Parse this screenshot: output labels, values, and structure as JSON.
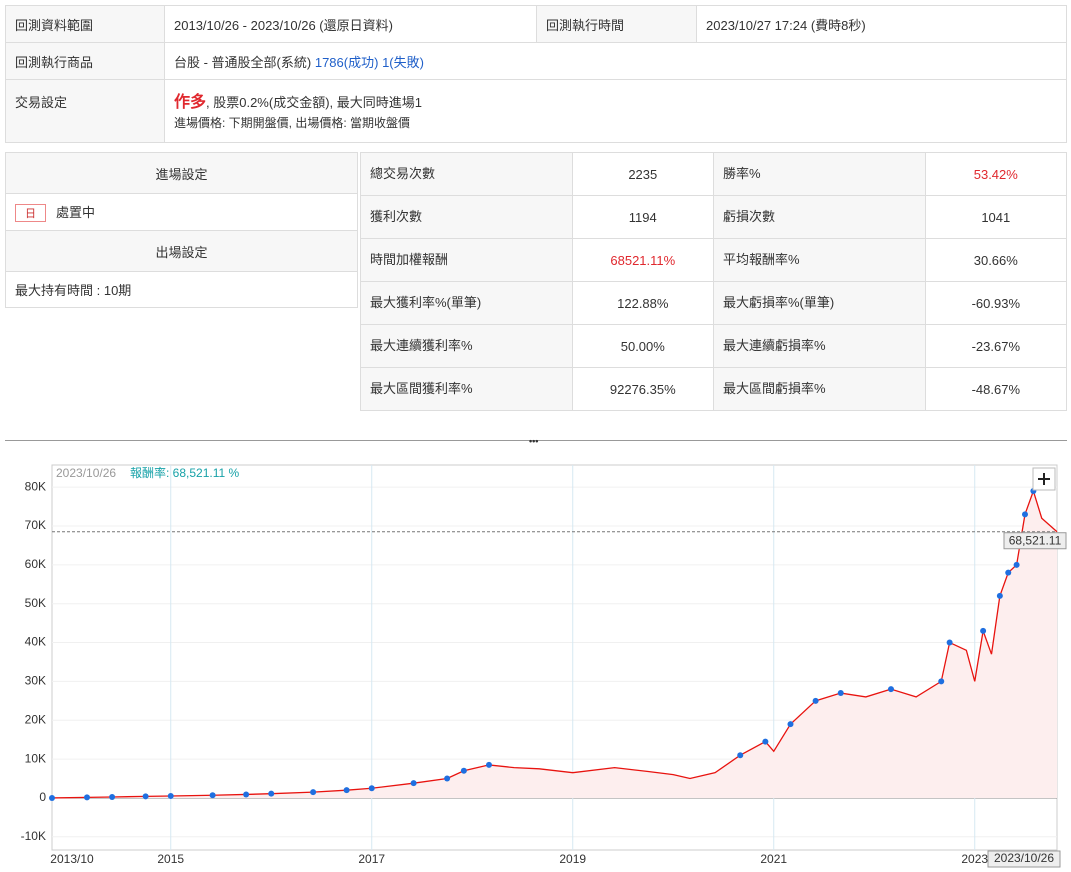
{
  "info": {
    "range_label": "回測資料範圍",
    "range_value": "2013/10/26 - 2023/10/26 (還原日資料)",
    "time_label": "回測執行時間",
    "time_value": "2023/10/27 17:24 (費時8秒)",
    "product_label": "回測執行商品",
    "product_value": "台股 - 普通股全部(系統)",
    "product_success": "1786(成功)",
    "product_fail": "1(失敗)",
    "trade_label": "交易設定",
    "trade_direction": "作多",
    "trade_detail": ", 股票0.2%(成交金額), 最大同時進場1",
    "trade_price": "進場價格: 下期開盤價, 出場價格: 當期收盤價"
  },
  "entry": {
    "title": "進場設定",
    "badge": "日",
    "condition": "處置中"
  },
  "exit": {
    "title": "出場設定",
    "condition": "最大持有時間 : 10期"
  },
  "stats": {
    "rows": [
      [
        "總交易次數",
        "2235",
        "勝率%",
        "53.42%"
      ],
      [
        "獲利次數",
        "1194",
        "虧損次數",
        "1041"
      ],
      [
        "時間加權報酬",
        "68521.11%",
        "平均報酬率%",
        "30.66%"
      ],
      [
        "最大獲利率%(單筆)",
        "122.88%",
        "最大虧損率%(單筆)",
        "-60.93%"
      ],
      [
        "最大連續獲利率%",
        "50.00%",
        "最大連續虧損率%",
        "-23.67%"
      ],
      [
        "最大區間獲利率%",
        "92276.35%",
        "最大區間虧損率%",
        "-48.67%"
      ]
    ]
  },
  "chart_data": {
    "type": "line",
    "header_date": "2023/10/26",
    "header_metric": "報酬率: 68,521.11 %",
    "date_label": "2023/10/26",
    "last_label": "68,521.11",
    "x": [
      "2013/10/26",
      "2014/03",
      "2014/06",
      "2014/10",
      "2015/01",
      "2015/06",
      "2015/10",
      "2016/01",
      "2016/06",
      "2016/10",
      "2017/01",
      "2017/06",
      "2017/10",
      "2017/12",
      "2018/03",
      "2018/06",
      "2018/09",
      "2019/01",
      "2019/06",
      "2019/10",
      "2020/01",
      "2020/03",
      "2020/06",
      "2020/09",
      "2020/12",
      "2021/01",
      "2021/03",
      "2021/06",
      "2021/09",
      "2021/12",
      "2022/03",
      "2022/06",
      "2022/09",
      "2022/10",
      "2022/12",
      "2023/01",
      "2023/02",
      "2023/03",
      "2023/04",
      "2023/05",
      "2023/06",
      "2023/07",
      "2023/08",
      "2023/09",
      "2023/10/26"
    ],
    "series": [
      {
        "color": "#e8130f",
        "high_color": "#1f6fe0",
        "fill": "#fdeeee",
        "values": [
          0,
          150,
          250,
          400,
          500,
          700,
          900,
          1100,
          1500,
          2000,
          2500,
          3800,
          5000,
          7000,
          8500,
          7800,
          7500,
          6500,
          7800,
          6800,
          6000,
          5000,
          6500,
          11000,
          14500,
          12000,
          19000,
          25000,
          27000,
          26000,
          28000,
          26000,
          30000,
          40000,
          38000,
          30000,
          43000,
          37000,
          52000,
          58000,
          60000,
          73000,
          79000,
          72000,
          68521.11
        ]
      }
    ],
    "xlim": [
      "2013/10/26",
      "2023/10/26"
    ],
    "ylim": [
      -13400,
      85700
    ],
    "xticks": [
      "2013/10",
      "2015",
      "2017",
      "2019",
      "2021",
      "2023"
    ],
    "yticks": [
      {
        "value": -10000,
        "label": "-10K"
      },
      0,
      {
        "value": 10000,
        "label": "10K"
      },
      {
        "value": 20000,
        "label": "20K"
      },
      {
        "value": 30000,
        "label": "30K"
      },
      {
        "value": 40000,
        "label": "40K"
      },
      {
        "value": 50000,
        "label": "50K"
      },
      {
        "value": 60000,
        "label": "60K"
      },
      {
        "value": 70000,
        "label": "70K"
      },
      {
        "value": 80000,
        "label": "80K"
      }
    ],
    "grid": true
  }
}
